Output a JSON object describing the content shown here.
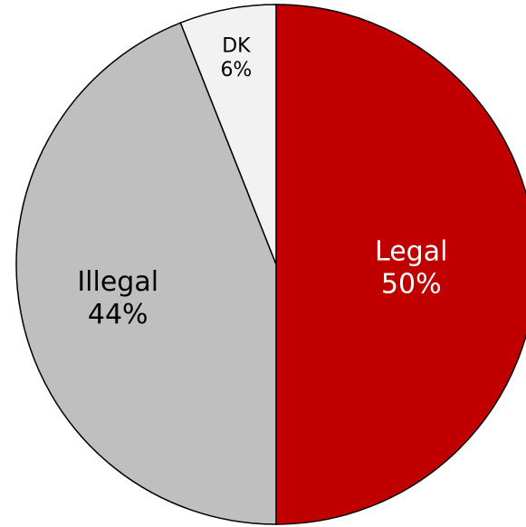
{
  "chart_data": {
    "type": "pie",
    "slices": [
      {
        "label": "Legal",
        "value": 50,
        "value_label": "50%",
        "color": "#c00000",
        "text_color": "#ffffff"
      },
      {
        "label": "Illegal",
        "value": 44,
        "value_label": "44%",
        "color": "#bfbfbf",
        "text_color": "#000000"
      },
      {
        "label": "DK",
        "value": 6,
        "value_label": "6%",
        "color": "#f2f2f2",
        "text_color": "#000000"
      }
    ],
    "start_angle": "12 o'clock",
    "direction": "clockwise",
    "legend": "none"
  }
}
